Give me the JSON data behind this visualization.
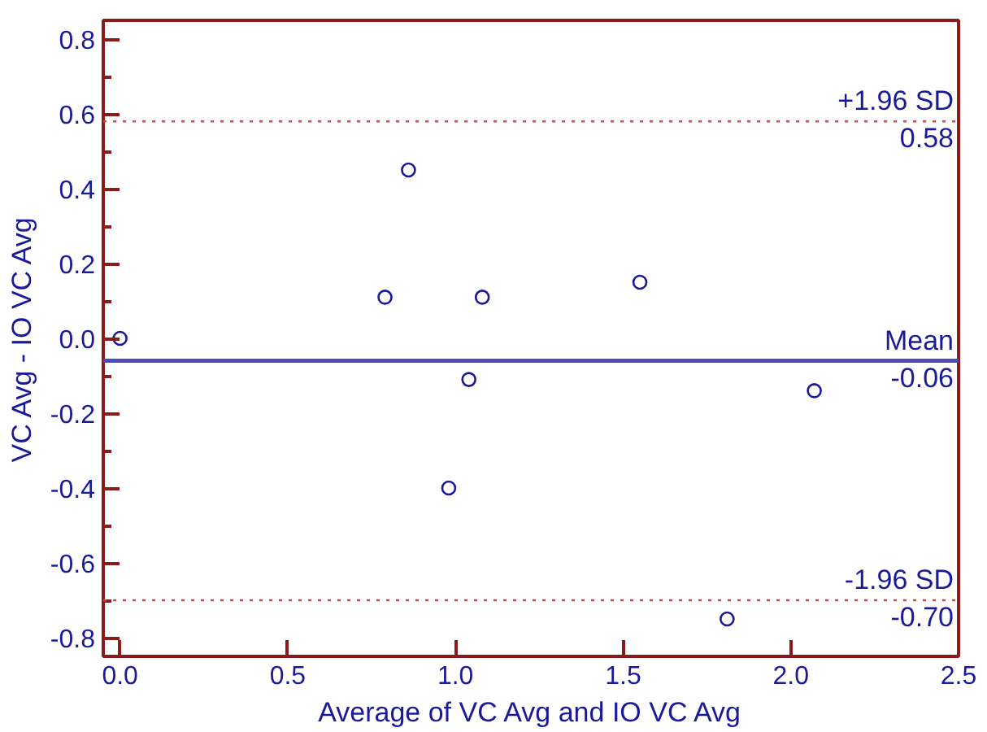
{
  "chart_data": {
    "type": "scatter",
    "xlabel": "Average of VC Avg and IO VC Avg",
    "ylabel": "VC Avg - IO VC Avg",
    "x": [
      0.0,
      0.79,
      0.86,
      1.08,
      1.55,
      1.04,
      2.07,
      0.98,
      1.81
    ],
    "series": [
      {
        "color": "#1a1a99",
        "values": [
          0.0,
          0.11,
          0.45,
          0.11,
          0.15,
          -0.11,
          -0.14,
          -0.4,
          -0.75
        ]
      }
    ],
    "marker": "circle",
    "grid": false,
    "annotations": [
      "0.58",
      "-0.06",
      "-0.70"
    ],
    "xlim": [
      -0.05,
      2.5
    ],
    "ylim": [
      -0.85,
      0.85
    ],
    "xticks": [
      {
        "value": 0.0,
        "label": "0.0"
      },
      0.5,
      {
        "value": 1.0,
        "label": "1.0"
      },
      1.5,
      {
        "value": 2.0,
        "label": "2.0"
      },
      2.5
    ],
    "yticks": [
      {
        "value": -0.8,
        "label": "-0.8"
      },
      {
        "value": -0.6,
        "label": "-0.6"
      },
      {
        "value": -0.4,
        "label": "-0.4"
      },
      {
        "value": -0.2,
        "label": "-0.2"
      },
      {
        "value": 0.0,
        "label": "0.0"
      },
      {
        "value": 0.2,
        "label": "0.2"
      },
      {
        "value": 0.4,
        "label": "0.4"
      },
      {
        "value": 0.6,
        "label": "0.6"
      },
      {
        "value": 0.8,
        "label": "0.8"
      }
    ],
    "ref_lines": [
      {
        "axis": "y",
        "value": 0.58,
        "label": "+1.96 SD",
        "color": "#c0504d",
        "line_style": "dotted"
      },
      {
        "axis": "y",
        "value": -0.06,
        "label": "Mean",
        "color": "#4a4ab8",
        "line_style": "solid"
      },
      {
        "axis": "y",
        "value": -0.7,
        "label": "-1.96 SD",
        "color": "#c0504d",
        "line_style": "dotted"
      }
    ]
  }
}
